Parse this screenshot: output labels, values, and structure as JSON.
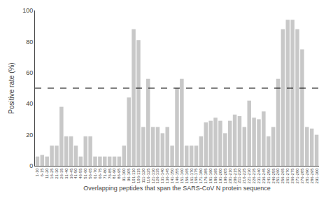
{
  "chart_data": {
    "type": "bar",
    "xlabel": "Overlapping peptides that span the SARS-CoV N protein sequence",
    "ylabel": "Positive rate (%)",
    "categories": [
      "1-10",
      "6-15",
      "11-20",
      "16-25",
      "21-30",
      "26-35",
      "31-40",
      "36-45",
      "41-50",
      "46-55",
      "51-60",
      "56-65",
      "61-70",
      "66-75",
      "71-80",
      "76-85",
      "81-90",
      "86-95",
      "91-100",
      "96-105",
      "101-110",
      "106-115",
      "111-120",
      "116-125",
      "121-130",
      "126-135",
      "131-140",
      "136-145",
      "141-150",
      "146-155",
      "151-160",
      "156-165",
      "161-170",
      "166-175",
      "171-180",
      "176-185",
      "181-190",
      "186-195",
      "191-200",
      "196-205",
      "201-210",
      "206-215",
      "211-220",
      "216-225",
      "221-230",
      "226-235",
      "231-240",
      "236-245",
      "241-250",
      "246-255",
      "251-260",
      "256-265",
      "261-270",
      "266-275",
      "271-280",
      "276-285",
      "281-290",
      "286-295",
      "291-300"
    ],
    "values": [
      6,
      7,
      6,
      13,
      13,
      38,
      19,
      19,
      13,
      6,
      19,
      19,
      6,
      6,
      6,
      6,
      6,
      6,
      13,
      44,
      88,
      81,
      25,
      56,
      25,
      25,
      21,
      25,
      13,
      50,
      56,
      13,
      13,
      13,
      19,
      28,
      29,
      31,
      29,
      21,
      29,
      33,
      32,
      25,
      42,
      31,
      30,
      35,
      19,
      25,
      56,
      88,
      94,
      94,
      88,
      75,
      25,
      24,
      20
    ],
    "color": "#c8c8c8",
    "reference_line": 50,
    "ylim": [
      0,
      100
    ],
    "yticks": [
      0,
      20,
      40,
      60,
      80,
      100
    ],
    "grid": false
  }
}
